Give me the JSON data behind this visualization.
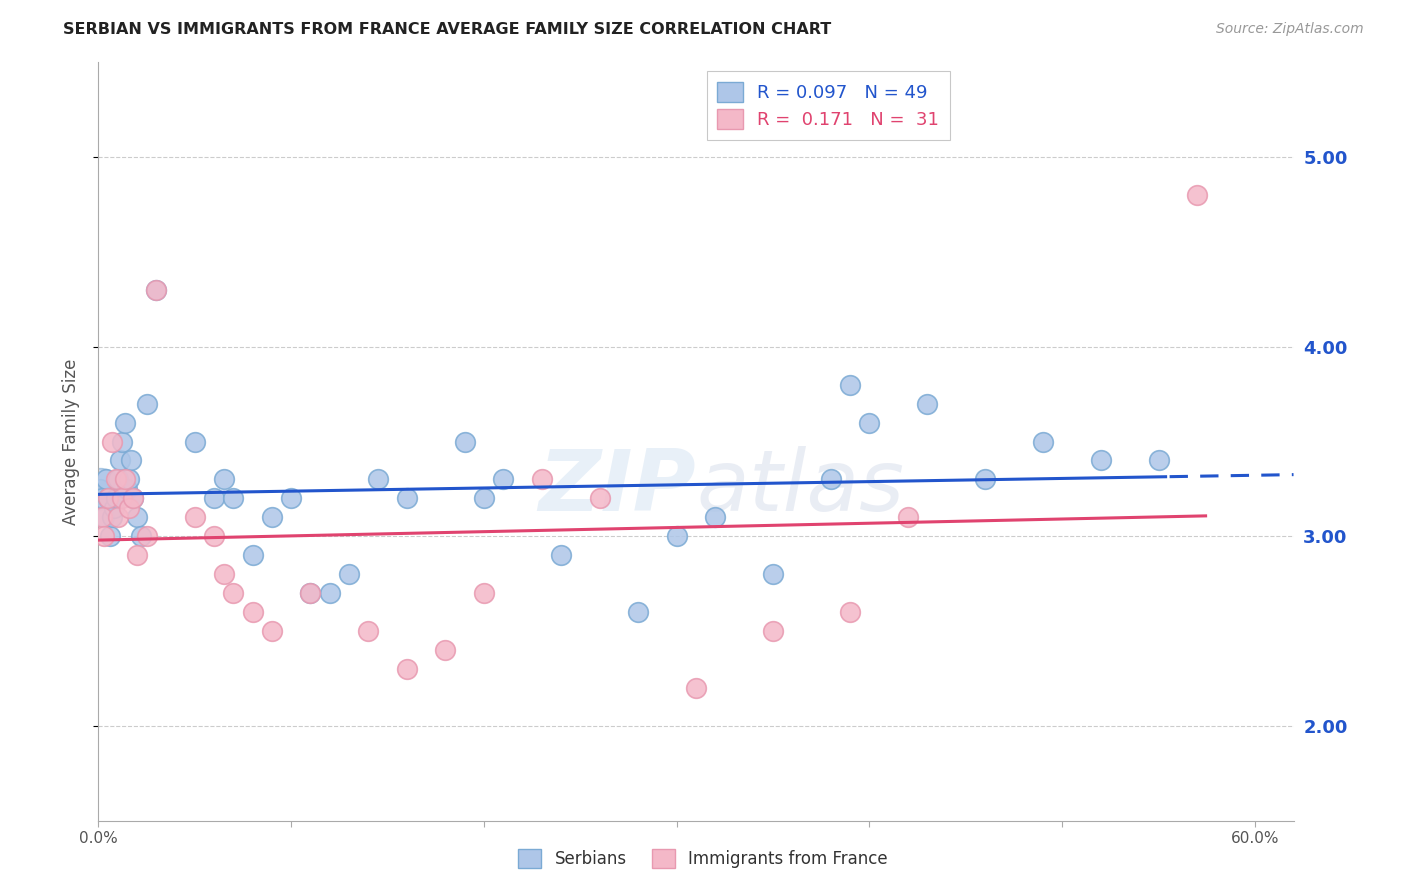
{
  "title": "SERBIAN VS IMMIGRANTS FROM FRANCE AVERAGE FAMILY SIZE CORRELATION CHART",
  "source": "Source: ZipAtlas.com",
  "xlabel": "",
  "ylabel": "Average Family Size",
  "xlim": [
    0.0,
    0.62
  ],
  "ylim": [
    1.5,
    5.5
  ],
  "yticks": [
    2.0,
    3.0,
    4.0,
    5.0
  ],
  "xticks": [
    0.0,
    0.1,
    0.2,
    0.3,
    0.4,
    0.5,
    0.6
  ],
  "xtick_labels": [
    "0.0%",
    "",
    "",
    "",
    "",
    "",
    "60.0%"
  ],
  "watermark": "ZIPatlas",
  "serbian_color": "#aec6e8",
  "french_color": "#f4b8c8",
  "serbian_edge_color": "#7baad4",
  "french_edge_color": "#e899b0",
  "serbian_line_color": "#2255cc",
  "french_line_color": "#e0436f",
  "background_color": "#ffffff",
  "grid_color": "#cccccc",
  "serbian_x": [
    0.001,
    0.002,
    0.003,
    0.004,
    0.005,
    0.006,
    0.007,
    0.008,
    0.009,
    0.01,
    0.011,
    0.012,
    0.014,
    0.015,
    0.016,
    0.017,
    0.018,
    0.02,
    0.022,
    0.025,
    0.03,
    0.05,
    0.06,
    0.065,
    0.07,
    0.08,
    0.09,
    0.1,
    0.11,
    0.12,
    0.13,
    0.145,
    0.16,
    0.19,
    0.2,
    0.21,
    0.24,
    0.28,
    0.3,
    0.35,
    0.38,
    0.4,
    0.43,
    0.46,
    0.49,
    0.52,
    0.55,
    0.39,
    0.32
  ],
  "serbian_y": [
    3.25,
    3.2,
    3.1,
    3.3,
    3.2,
    3.0,
    3.1,
    3.15,
    3.2,
    3.3,
    3.4,
    3.5,
    3.6,
    3.25,
    3.3,
    3.4,
    3.2,
    3.1,
    3.0,
    3.7,
    4.3,
    3.5,
    3.2,
    3.3,
    3.2,
    2.9,
    3.1,
    3.2,
    2.7,
    2.7,
    2.8,
    3.3,
    3.2,
    3.5,
    3.2,
    3.3,
    2.9,
    2.6,
    3.0,
    2.8,
    3.3,
    3.6,
    3.7,
    3.3,
    3.5,
    3.4,
    3.4,
    3.8,
    3.1
  ],
  "french_x": [
    0.002,
    0.003,
    0.005,
    0.007,
    0.009,
    0.01,
    0.012,
    0.014,
    0.016,
    0.018,
    0.02,
    0.025,
    0.03,
    0.05,
    0.06,
    0.065,
    0.07,
    0.08,
    0.09,
    0.11,
    0.14,
    0.16,
    0.18,
    0.2,
    0.23,
    0.26,
    0.31,
    0.35,
    0.39,
    0.42,
    0.57
  ],
  "french_y": [
    3.1,
    3.0,
    3.2,
    3.5,
    3.3,
    3.1,
    3.2,
    3.3,
    3.15,
    3.2,
    2.9,
    3.0,
    4.3,
    3.1,
    3.0,
    2.8,
    2.7,
    2.6,
    2.5,
    2.7,
    2.5,
    2.3,
    2.4,
    2.7,
    3.3,
    3.2,
    2.2,
    2.5,
    2.6,
    3.1,
    4.8
  ]
}
